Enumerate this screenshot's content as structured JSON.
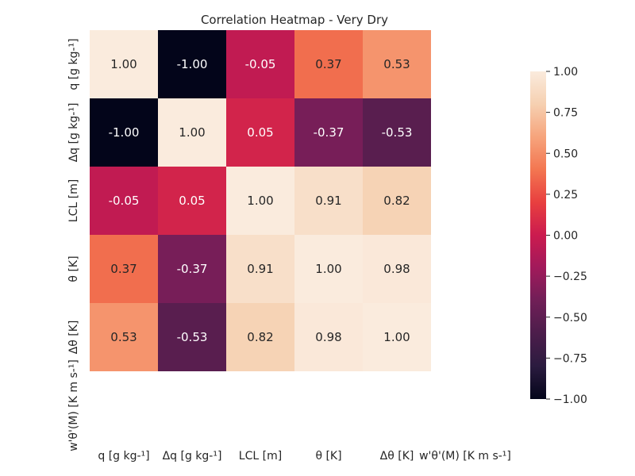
{
  "chart_data": {
    "type": "heatmap",
    "title": "Correlation Heatmap - Very Dry",
    "x_categories": [
      "q [g kg-¹]",
      "Δq [g kg-¹]",
      "LCL [m]",
      "θ [K]",
      "Δθ [K]",
      "w'θ'(M) [K m s-¹]"
    ],
    "y_categories": [
      "q [g kg-¹]",
      "Δq [g kg-¹]",
      "LCL [m]",
      "θ [K]",
      "Δθ [K]",
      "w'θ'(M) [K m s-¹]"
    ],
    "values": [
      [
        1.0,
        -1.0,
        -0.05,
        0.37,
        0.53,
        null
      ],
      [
        -1.0,
        1.0,
        0.05,
        -0.37,
        -0.53,
        null
      ],
      [
        -0.05,
        0.05,
        1.0,
        0.91,
        0.82,
        null
      ],
      [
        0.37,
        -0.37,
        0.91,
        1.0,
        0.98,
        null
      ],
      [
        0.53,
        -0.53,
        0.82,
        0.98,
        1.0,
        null
      ],
      [
        null,
        null,
        null,
        null,
        null,
        null
      ]
    ],
    "value_format": "0.00",
    "colorbar": {
      "vmin": -1.0,
      "vmax": 1.0,
      "ticks": [
        "1.00",
        "0.75",
        "0.50",
        "0.25",
        "0.00",
        "−0.25",
        "−0.50",
        "−0.75",
        "−1.00"
      ],
      "tick_values": [
        1.0,
        0.75,
        0.5,
        0.25,
        0.0,
        -0.25,
        -0.5,
        -0.75,
        -1.0
      ],
      "placement": "right"
    },
    "colormap": "rocket",
    "colormap_stops": [
      "#03051a",
      "#2b1b3f",
      "#4c1d4b",
      "#701f57",
      "#a11a5b",
      "#cb1b4f",
      "#e83f3f",
      "#f37651",
      "#f6a47c",
      "#f6d0b1",
      "#faebdd"
    ]
  }
}
